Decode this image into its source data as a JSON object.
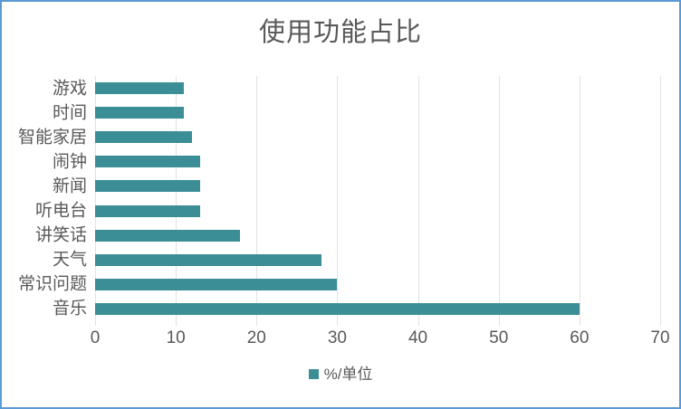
{
  "chart_data": {
    "type": "bar",
    "orientation": "horizontal",
    "title": "使用功能占比",
    "categories": [
      "游戏",
      "时间",
      "智能家居",
      "闹钟",
      "新闻",
      "听电台",
      "讲笑话",
      "天气",
      "常识问题",
      "音乐"
    ],
    "values": [
      11,
      11,
      12,
      13,
      13,
      13,
      18,
      28,
      30,
      60
    ],
    "xlabel": "",
    "ylabel": "",
    "xlim": [
      0,
      70
    ],
    "xticks": [
      0,
      10,
      20,
      30,
      40,
      50,
      60,
      70
    ],
    "grid": true,
    "legend": {
      "label": "%/单位",
      "position": "bottom"
    },
    "colors": {
      "bar": "#3B8E96",
      "text": "#595959",
      "gridline": "#E2E2E2",
      "frame_border": "#5B9BD5",
      "background": "#FFFFFF"
    }
  }
}
